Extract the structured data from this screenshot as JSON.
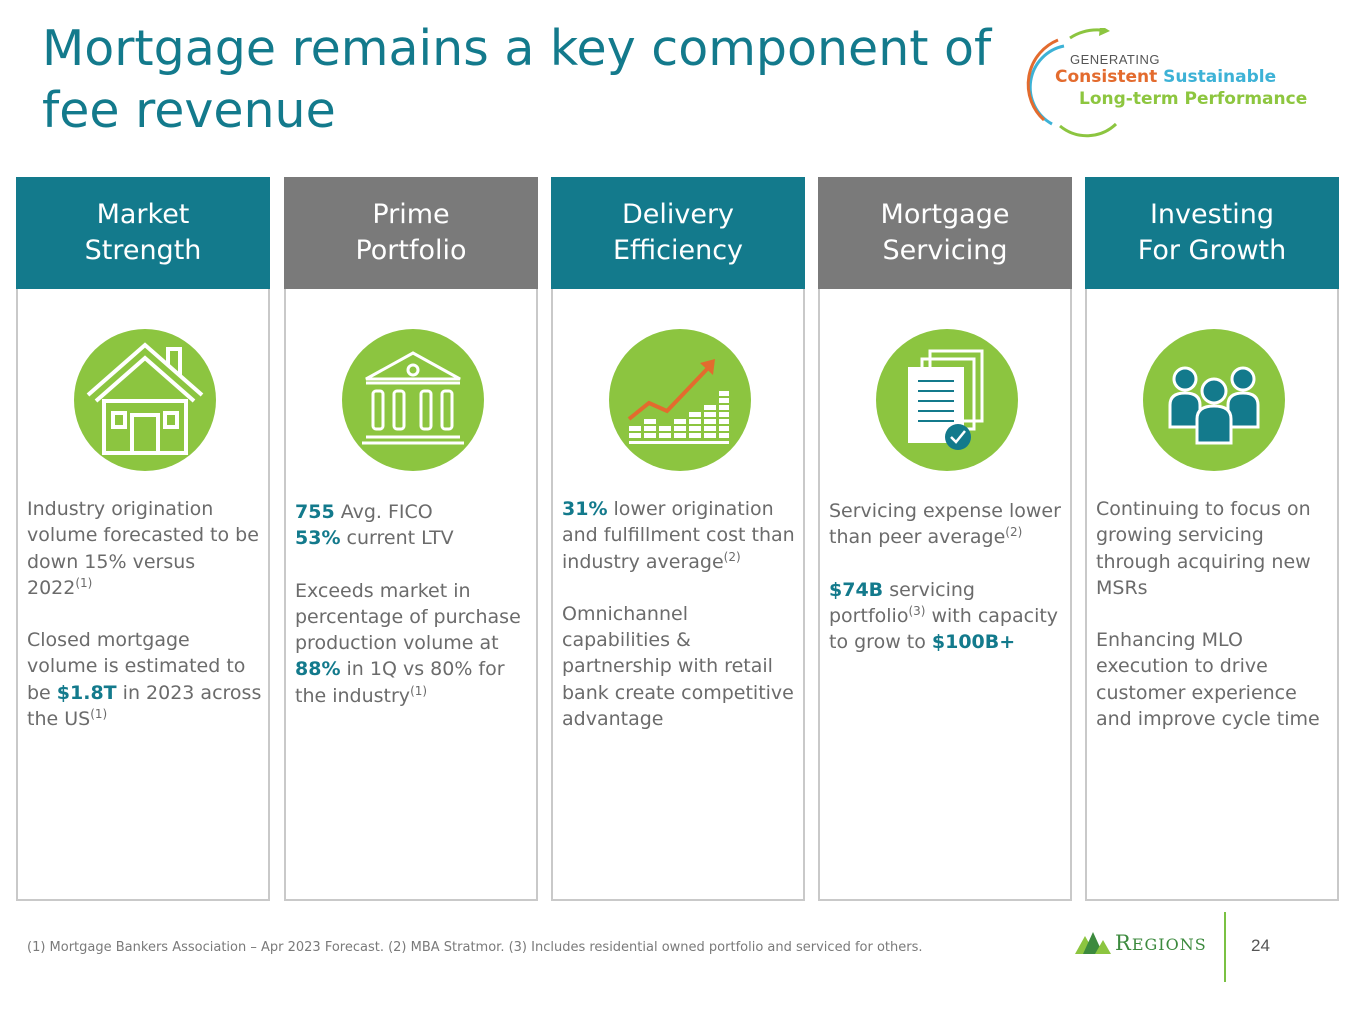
{
  "title": "Mortgage remains a key component of fee revenue",
  "logo": {
    "generating": "GENERATING",
    "consistent": "Consistent",
    "sustainable": "Sustainable",
    "long_term": "Long-term Performance"
  },
  "columns": [
    {
      "header": "Market\nStrength",
      "icon": "house-icon",
      "paragraphs": [
        [
          {
            "t": "Industry origination volume forecasted to be down 15% versus 2022"
          },
          {
            "t": "(1)",
            "sup": true
          }
        ],
        [
          {
            "t": "Closed mortgage volume is estimated to be "
          },
          {
            "t": "$1.8T",
            "hl": true
          },
          {
            "t": " in 2023 across the US"
          },
          {
            "t": "(1)",
            "sup": true
          }
        ]
      ]
    },
    {
      "header": "Prime\nPortfolio",
      "icon": "bank-icon",
      "paragraphs": [
        [
          {
            "t": "755",
            "hl": true
          },
          {
            "t": " Avg. FICO"
          },
          {
            "br": true
          },
          {
            "t": "53%",
            "hl": true
          },
          {
            "t": " current LTV"
          }
        ],
        [
          {
            "t": "Exceeds market in percentage of purchase production volume at "
          },
          {
            "t": "88%",
            "hl": true
          },
          {
            "t": " in 1Q vs 80% for the industry"
          },
          {
            "t": "(1)",
            "sup": true
          }
        ]
      ]
    },
    {
      "header": "Delivery\nEfficiency",
      "icon": "growth-chart-icon",
      "paragraphs": [
        [
          {
            "t": "31%",
            "hl": true
          },
          {
            "t": " lower origination and fulfillment cost than industry average"
          },
          {
            "t": "(2)",
            "sup": true
          }
        ],
        [
          {
            "t": "Omnichannel capabilities & partnership with retail bank create competitive advantage"
          }
        ]
      ]
    },
    {
      "header": "Mortgage\nServicing",
      "icon": "documents-check-icon",
      "paragraphs": [
        [
          {
            "t": "Servicing expense lower than peer average"
          },
          {
            "t": "(2)",
            "sup": true
          }
        ],
        [
          {
            "t": "$74B",
            "hl": true
          },
          {
            "t": " servicing portfolio"
          },
          {
            "t": "(3)",
            "sup": true
          },
          {
            "t": " with capacity to grow to "
          },
          {
            "t": "$100B+",
            "hl": true
          }
        ]
      ]
    },
    {
      "header": "Investing\nFor Growth",
      "icon": "people-group-icon",
      "paragraphs": [
        [
          {
            "t": "Continuing to focus on growing servicing through acquiring new MSRs"
          }
        ],
        [
          {
            "t": "Enhancing MLO execution to drive customer experience and improve cycle time"
          }
        ]
      ]
    }
  ],
  "footnote": "(1) Mortgage Bankers Association – Apr 2023 Forecast. (2) MBA Stratmor. (3) Includes residential owned portfolio and serviced for others.",
  "brand": {
    "name": "Regions",
    "first_letter": "R",
    "rest": "EGIONS"
  },
  "page_number": "24",
  "colors": {
    "teal": "#137a8c",
    "gray": "#7a7a7a",
    "green": "#8cc540",
    "orange": "#e36b2e",
    "blue": "#3db2d6"
  }
}
